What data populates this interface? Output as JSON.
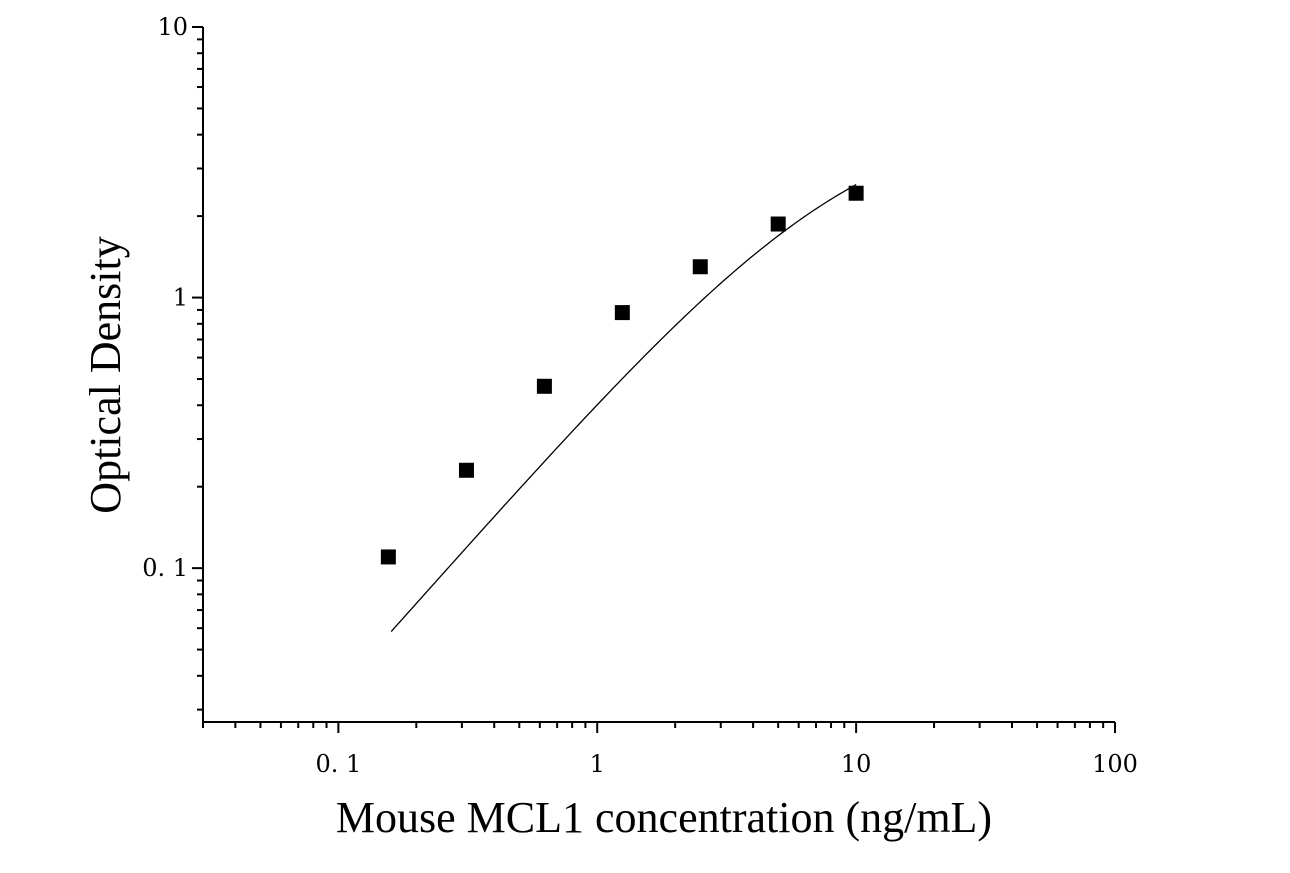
{
  "chart_data": {
    "type": "scatter",
    "xlabel": "Mouse MCL1 concentration (ng/mL)",
    "ylabel": "Optical Density",
    "x_scale": "log",
    "y_scale": "log",
    "xlim": [
      0.03,
      100
    ],
    "ylim": [
      0.027,
      10
    ],
    "x_ticks": [
      {
        "value": 0.1,
        "label": "0. 1"
      },
      {
        "value": 1,
        "label": "1"
      },
      {
        "value": 10,
        "label": "10"
      },
      {
        "value": 100,
        "label": "100"
      }
    ],
    "y_ticks": [
      {
        "value": 0.1,
        "label": "0. 1"
      },
      {
        "value": 1,
        "label": "1"
      },
      {
        "value": 10,
        "label": "10"
      }
    ],
    "grid": false,
    "series": [
      {
        "marker": "square",
        "color": "#000000",
        "points": [
          {
            "x": 0.156,
            "y": 0.11
          },
          {
            "x": 0.3125,
            "y": 0.23
          },
          {
            "x": 0.625,
            "y": 0.47
          },
          {
            "x": 1.25,
            "y": 0.88
          },
          {
            "x": 2.5,
            "y": 1.3
          },
          {
            "x": 5,
            "y": 1.87
          },
          {
            "x": 10,
            "y": 2.43
          }
        ]
      }
    ],
    "fit_curve": {
      "type": "4PL",
      "color": "#000000",
      "x_range": [
        0.16,
        10
      ],
      "params": {
        "A": 0.001,
        "B": 1.1,
        "C": 9.2,
        "D": 5.0
      }
    }
  }
}
